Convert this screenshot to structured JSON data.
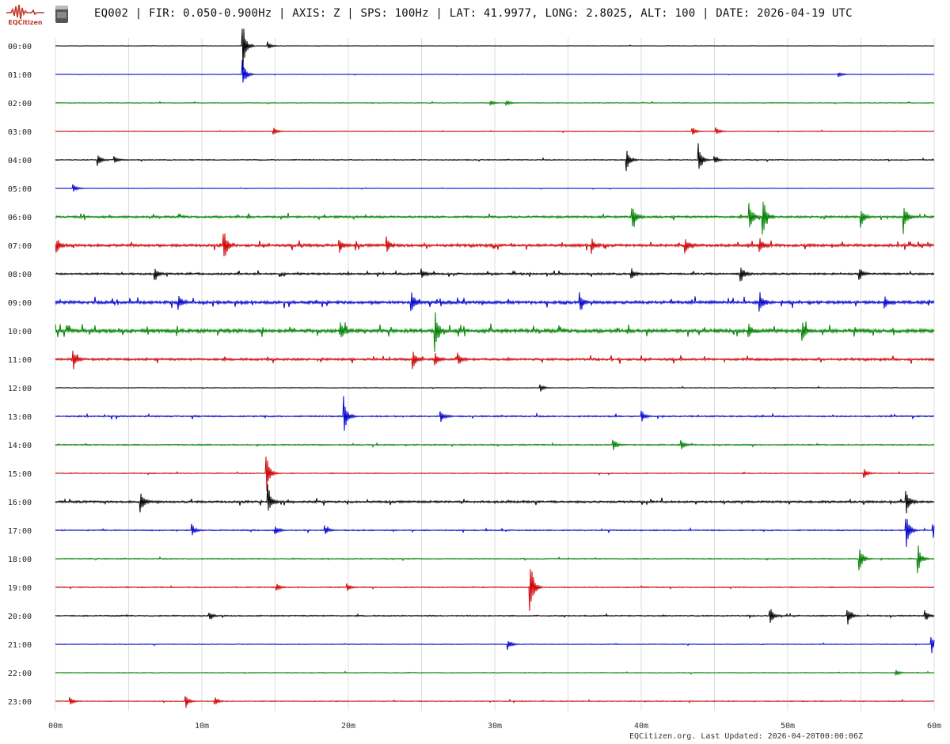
{
  "header": {
    "logo_label": "EQCitizen",
    "title": "EQ002 | FIR: 0.050-0.900Hz | AXIS: Z | SPS: 100Hz | LAT: 41.9977, LONG: 2.8025, ALT: 100 | DATE: 2026-04-19 UTC"
  },
  "footer": {
    "updated": "EQCitizen.org. Last Updated: 2026-04-20T00:00:06Z"
  },
  "colors": {
    "trace_cycle": [
      "#000000",
      "#0000cc",
      "#008000",
      "#cc0000"
    ],
    "grid": "#dddddd",
    "logo": "#c0392b"
  },
  "chart_data": {
    "type": "line",
    "subtype": "helicorder",
    "x_unit": "minutes",
    "xlim": [
      0,
      60
    ],
    "x_ticks": [
      0,
      10,
      20,
      30,
      40,
      50,
      60
    ],
    "x_tick_labels": [
      "00m",
      "10m",
      "20m",
      "30m",
      "40m",
      "50m",
      "60m"
    ],
    "grid": "vertical every 5 minutes",
    "rows": [
      "00:00",
      "01:00",
      "02:00",
      "03:00",
      "04:00",
      "05:00",
      "06:00",
      "07:00",
      "08:00",
      "09:00",
      "10:00",
      "11:00",
      "12:00",
      "13:00",
      "14:00",
      "15:00",
      "16:00",
      "17:00",
      "18:00",
      "19:00",
      "20:00",
      "21:00",
      "22:00",
      "23:00"
    ],
    "noise_level": [
      0.2,
      0.2,
      0.3,
      0.3,
      0.4,
      0.2,
      0.9,
      1.2,
      0.8,
      1.3,
      1.6,
      1.0,
      0.3,
      0.6,
      0.5,
      0.4,
      0.9,
      0.5,
      0.4,
      0.4,
      0.5,
      0.3,
      0.3,
      0.4
    ],
    "events": [
      {
        "row": 0,
        "minute": 12.8,
        "amp": 1.8
      },
      {
        "row": 0,
        "minute": 14.5,
        "amp": 0.3
      },
      {
        "row": 1,
        "minute": 12.8,
        "amp": 1.0
      },
      {
        "row": 1,
        "minute": 53.5,
        "amp": 0.2
      },
      {
        "row": 2,
        "minute": 29.7,
        "amp": 0.2
      },
      {
        "row": 2,
        "minute": 30.8,
        "amp": 0.2
      },
      {
        "row": 3,
        "minute": 14.9,
        "amp": 0.3
      },
      {
        "row": 3,
        "minute": 43.5,
        "amp": 0.3
      },
      {
        "row": 3,
        "minute": 45.1,
        "amp": 0.3
      },
      {
        "row": 4,
        "minute": 2.9,
        "amp": 0.5
      },
      {
        "row": 4,
        "minute": 4.0,
        "amp": 0.3
      },
      {
        "row": 4,
        "minute": 39.0,
        "amp": 0.9
      },
      {
        "row": 4,
        "minute": 43.9,
        "amp": 1.2
      },
      {
        "row": 4,
        "minute": 45.0,
        "amp": 0.3
      },
      {
        "row": 5,
        "minute": 1.2,
        "amp": 0.4
      },
      {
        "row": 6,
        "minute": 39.4,
        "amp": 1.0
      },
      {
        "row": 6,
        "minute": 47.4,
        "amp": 1.0
      },
      {
        "row": 6,
        "minute": 48.3,
        "amp": 1.6
      },
      {
        "row": 6,
        "minute": 55.0,
        "amp": 0.7
      },
      {
        "row": 6,
        "minute": 57.9,
        "amp": 1.2
      },
      {
        "row": 7,
        "minute": 0.1,
        "amp": 0.5
      },
      {
        "row": 7,
        "minute": 11.5,
        "amp": 1.3
      },
      {
        "row": 7,
        "minute": 19.4,
        "amp": 0.5
      },
      {
        "row": 7,
        "minute": 22.6,
        "amp": 0.6
      },
      {
        "row": 7,
        "minute": 36.6,
        "amp": 0.6
      },
      {
        "row": 7,
        "minute": 43.0,
        "amp": 0.6
      },
      {
        "row": 7,
        "minute": 48.1,
        "amp": 0.5
      },
      {
        "row": 8,
        "minute": 6.8,
        "amp": 0.5
      },
      {
        "row": 8,
        "minute": 25.0,
        "amp": 0.4
      },
      {
        "row": 8,
        "minute": 39.3,
        "amp": 0.5
      },
      {
        "row": 8,
        "minute": 46.8,
        "amp": 0.7
      },
      {
        "row": 8,
        "minute": 54.9,
        "amp": 0.5
      },
      {
        "row": 9,
        "minute": 8.4,
        "amp": 0.6
      },
      {
        "row": 9,
        "minute": 24.3,
        "amp": 0.9
      },
      {
        "row": 9,
        "minute": 35.8,
        "amp": 0.7
      },
      {
        "row": 9,
        "minute": 48.1,
        "amp": 0.7
      },
      {
        "row": 9,
        "minute": 56.6,
        "amp": 0.5
      },
      {
        "row": 10,
        "minute": 19.5,
        "amp": 0.6
      },
      {
        "row": 10,
        "minute": 25.9,
        "amp": 1.4
      },
      {
        "row": 10,
        "minute": 47.3,
        "amp": 0.6
      },
      {
        "row": 10,
        "minute": 51.0,
        "amp": 0.8
      },
      {
        "row": 11,
        "minute": 1.2,
        "amp": 0.8
      },
      {
        "row": 11,
        "minute": 24.4,
        "amp": 0.7
      },
      {
        "row": 11,
        "minute": 25.9,
        "amp": 0.6
      },
      {
        "row": 11,
        "minute": 27.5,
        "amp": 0.5
      },
      {
        "row": 12,
        "minute": 33.1,
        "amp": 0.3
      },
      {
        "row": 13,
        "minute": 19.7,
        "amp": 1.4
      },
      {
        "row": 13,
        "minute": 26.3,
        "amp": 0.5
      },
      {
        "row": 13,
        "minute": 40.0,
        "amp": 0.5
      },
      {
        "row": 14,
        "minute": 38.1,
        "amp": 0.4
      },
      {
        "row": 14,
        "minute": 42.7,
        "amp": 0.4
      },
      {
        "row": 15,
        "minute": 14.4,
        "amp": 1.5
      },
      {
        "row": 15,
        "minute": 55.2,
        "amp": 0.4
      },
      {
        "row": 16,
        "minute": 5.8,
        "amp": 0.9
      },
      {
        "row": 16,
        "minute": 14.5,
        "amp": 1.2
      },
      {
        "row": 16,
        "minute": 58.1,
        "amp": 0.8
      },
      {
        "row": 17,
        "minute": 9.3,
        "amp": 0.5
      },
      {
        "row": 17,
        "minute": 15.0,
        "amp": 0.4
      },
      {
        "row": 17,
        "minute": 18.4,
        "amp": 0.4
      },
      {
        "row": 17,
        "minute": 58.1,
        "amp": 1.4
      },
      {
        "row": 17,
        "minute": 59.9,
        "amp": 0.7
      },
      {
        "row": 18,
        "minute": 54.9,
        "amp": 1.1
      },
      {
        "row": 18,
        "minute": 58.9,
        "amp": 1.0
      },
      {
        "row": 19,
        "minute": 15.1,
        "amp": 0.3
      },
      {
        "row": 19,
        "minute": 19.9,
        "amp": 0.3
      },
      {
        "row": 19,
        "minute": 32.4,
        "amp": 2.5
      },
      {
        "row": 20,
        "minute": 10.5,
        "amp": 0.3
      },
      {
        "row": 20,
        "minute": 48.8,
        "amp": 0.6
      },
      {
        "row": 20,
        "minute": 54.1,
        "amp": 0.6
      },
      {
        "row": 20,
        "minute": 59.4,
        "amp": 0.4
      },
      {
        "row": 21,
        "minute": 30.9,
        "amp": 0.4
      },
      {
        "row": 21,
        "minute": 59.8,
        "amp": 0.8
      },
      {
        "row": 22,
        "minute": 57.4,
        "amp": 0.2
      },
      {
        "row": 23,
        "minute": 1.0,
        "amp": 0.3
      },
      {
        "row": 23,
        "minute": 8.9,
        "amp": 0.5
      },
      {
        "row": 23,
        "minute": 10.9,
        "amp": 0.3
      }
    ]
  }
}
